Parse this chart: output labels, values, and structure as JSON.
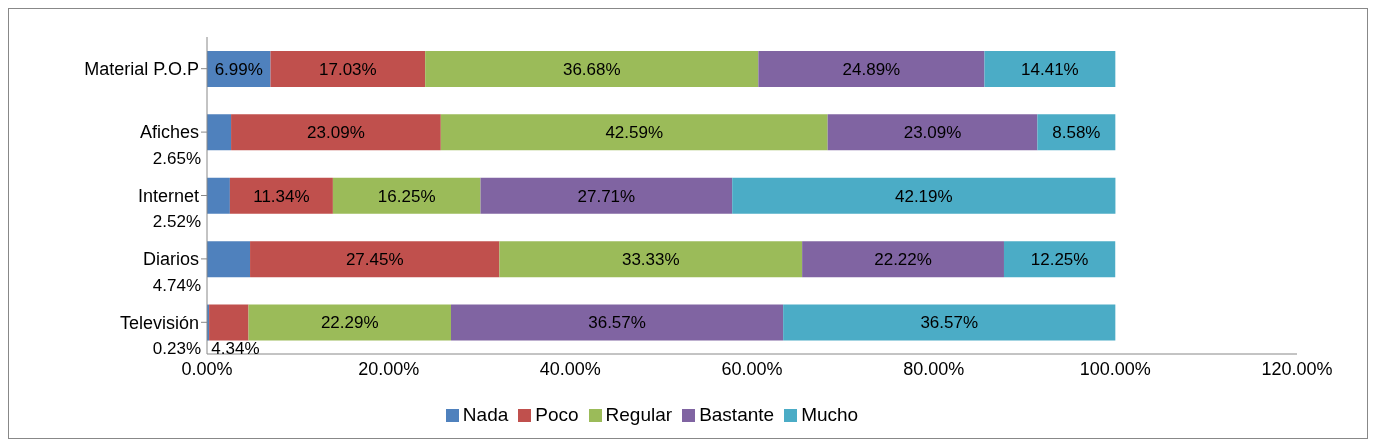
{
  "chart_data": {
    "type": "bar",
    "orientation": "horizontal",
    "stacked": true,
    "categories": [
      "Material P.O.P",
      "Afiches",
      "Internet",
      "Diarios",
      "Televisión"
    ],
    "series": [
      {
        "name": "Nada",
        "color": "#4f81bd",
        "values": [
          6.99,
          2.65,
          2.52,
          4.74,
          0.23
        ],
        "value_labels": [
          "6.99%",
          "2.65%",
          "2.52%",
          "4.74%",
          "0.23%"
        ]
      },
      {
        "name": "Poco",
        "color": "#c0504d",
        "values": [
          17.03,
          23.09,
          11.34,
          27.45,
          4.34
        ],
        "value_labels": [
          "17.03%",
          "23.09%",
          "11.34%",
          "27.45%",
          "4.34%"
        ]
      },
      {
        "name": "Regular",
        "color": "#9bbb59",
        "values": [
          36.68,
          42.59,
          16.25,
          33.33,
          22.29
        ],
        "value_labels": [
          "36.68%",
          "42.59%",
          "16.25%",
          "33.33%",
          "22.29%"
        ]
      },
      {
        "name": "Bastante",
        "color": "#8064a2",
        "values": [
          24.89,
          23.09,
          27.71,
          22.22,
          36.57
        ],
        "value_labels": [
          "24.89%",
          "23.09%",
          "27.71%",
          "22.22%",
          "36.57%"
        ]
      },
      {
        "name": "Mucho",
        "color": "#4bacc6",
        "values": [
          14.41,
          8.58,
          42.19,
          12.25,
          36.57
        ],
        "value_labels": [
          "14.41%",
          "8.58%",
          "42.19%",
          "12.25%",
          "36.57%"
        ]
      }
    ],
    "xlim": [
      0,
      120
    ],
    "xticks": [
      {
        "value": 0,
        "label": "0.00%"
      },
      {
        "value": 20,
        "label": "20.00%"
      },
      {
        "value": 40,
        "label": "40.00%"
      },
      {
        "value": 60,
        "label": "60.00%"
      },
      {
        "value": 80,
        "label": "80.00%"
      },
      {
        "value": 100,
        "label": "100.00%"
      },
      {
        "value": 120,
        "label": "120.00%"
      }
    ],
    "legend": "bottom"
  }
}
